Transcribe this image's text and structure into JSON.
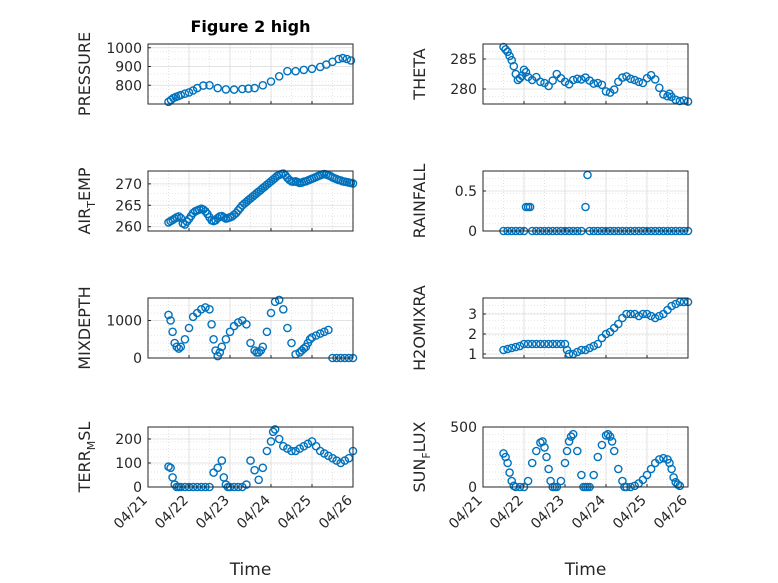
{
  "figure": {
    "title": "Figure 2 high",
    "xlabel": "Time",
    "marker_color": "#0072BD",
    "x_tick_labels": [
      "04/21",
      "04/22",
      "04/23",
      "04/24",
      "04/25",
      "04/26"
    ]
  },
  "chart_data": [
    {
      "type": "scatter",
      "ylabel": "PRESSURE",
      "title": "Figure 2 high",
      "xlim": [
        0,
        5
      ],
      "ylim": [
        700,
        1020
      ],
      "yticks": [
        800,
        900,
        1000
      ],
      "x": [
        0.5,
        0.56,
        0.62,
        0.68,
        0.74,
        0.8,
        0.9,
        1.0,
        1.1,
        1.2,
        1.35,
        1.5,
        1.7,
        1.9,
        2.1,
        2.3,
        2.45,
        2.6,
        2.8,
        3.0,
        3.2,
        3.4,
        3.6,
        3.8,
        4.0,
        4.2,
        4.35,
        4.5,
        4.65,
        4.75,
        4.85,
        4.95
      ],
      "y": [
        712,
        722,
        732,
        738,
        742,
        748,
        755,
        762,
        772,
        785,
        798,
        800,
        785,
        778,
        777,
        780,
        782,
        785,
        800,
        820,
        848,
        875,
        875,
        882,
        888,
        898,
        910,
        925,
        940,
        945,
        940,
        932
      ]
    },
    {
      "type": "scatter",
      "ylabel": "THETA",
      "xlim": [
        0,
        5
      ],
      "ylim": [
        277.5,
        287.5
      ],
      "yticks": [
        280,
        285
      ],
      "x": [
        0.5,
        0.55,
        0.6,
        0.65,
        0.7,
        0.75,
        0.8,
        0.85,
        0.9,
        0.95,
        1.0,
        1.05,
        1.1,
        1.2,
        1.3,
        1.4,
        1.5,
        1.6,
        1.7,
        1.8,
        1.9,
        2.0,
        2.1,
        2.2,
        2.3,
        2.4,
        2.5,
        2.6,
        2.7,
        2.8,
        2.9,
        3.0,
        3.1,
        3.2,
        3.3,
        3.4,
        3.5,
        3.6,
        3.7,
        3.8,
        3.9,
        4.0,
        4.1,
        4.2,
        4.3,
        4.4,
        4.5,
        4.55,
        4.6,
        4.7,
        4.8,
        4.9,
        5.0
      ],
      "y": [
        287.0,
        286.6,
        286.2,
        285.5,
        284.8,
        283.8,
        282.5,
        281.5,
        281.8,
        282.2,
        283.2,
        282.8,
        282.0,
        281.5,
        282.0,
        281.2,
        281.0,
        280.5,
        281.4,
        282.5,
        281.8,
        281.2,
        280.8,
        281.5,
        281.7,
        281.6,
        281.9,
        281.4,
        280.9,
        281.0,
        280.7,
        279.6,
        279.4,
        279.9,
        281.2,
        281.9,
        282.1,
        281.7,
        281.5,
        281.2,
        281.0,
        281.8,
        282.3,
        281.6,
        280.2,
        279.1,
        278.8,
        279.2,
        278.7,
        278.2,
        278.0,
        278.1,
        277.9
      ]
    },
    {
      "type": "scatter",
      "ylabel": "AIR_TEMP",
      "xlim": [
        0,
        5
      ],
      "ylim": [
        259,
        273
      ],
      "yticks": [
        260,
        265,
        270
      ],
      "x": [
        0.5,
        0.55,
        0.6,
        0.65,
        0.7,
        0.75,
        0.8,
        0.85,
        0.9,
        0.95,
        1.0,
        1.05,
        1.1,
        1.15,
        1.2,
        1.25,
        1.3,
        1.35,
        1.4,
        1.45,
        1.5,
        1.55,
        1.6,
        1.65,
        1.7,
        1.75,
        1.8,
        1.85,
        1.9,
        1.95,
        2.0,
        2.05,
        2.1,
        2.15,
        2.2,
        2.25,
        2.3,
        2.35,
        2.4,
        2.45,
        2.5,
        2.55,
        2.6,
        2.65,
        2.7,
        2.75,
        2.8,
        2.85,
        2.9,
        2.95,
        3.0,
        3.05,
        3.1,
        3.15,
        3.2,
        3.25,
        3.3,
        3.35,
        3.4,
        3.45,
        3.5,
        3.55,
        3.6,
        3.65,
        3.7,
        3.75,
        3.8,
        3.85,
        3.9,
        3.95,
        4.0,
        4.05,
        4.1,
        4.15,
        4.2,
        4.25,
        4.3,
        4.35,
        4.4,
        4.45,
        4.5,
        4.55,
        4.6,
        4.65,
        4.7,
        4.75,
        4.8,
        4.85,
        4.9,
        4.95,
        5.0
      ],
      "y": [
        261.0,
        261.3,
        261.6,
        261.9,
        262.2,
        262.4,
        262.0,
        260.8,
        260.5,
        261.2,
        261.8,
        262.5,
        263.2,
        263.6,
        263.8,
        264.0,
        264.2,
        264.0,
        263.6,
        263.0,
        262.2,
        261.5,
        261.3,
        261.5,
        262.0,
        262.4,
        262.5,
        262.2,
        261.9,
        262.0,
        262.2,
        262.4,
        262.8,
        263.2,
        263.8,
        264.4,
        265.0,
        265.4,
        265.8,
        266.2,
        266.6,
        267.0,
        267.4,
        267.8,
        268.2,
        268.6,
        269.0,
        269.4,
        269.8,
        270.2,
        270.6,
        271.0,
        271.4,
        271.8,
        272.1,
        272.3,
        272.4,
        272.0,
        271.4,
        270.9,
        270.6,
        270.5,
        270.6,
        270.4,
        270.2,
        270.3,
        270.5,
        270.6,
        270.8,
        271.0,
        271.2,
        271.4,
        271.6,
        271.8,
        272.0,
        272.2,
        272.3,
        272.2,
        272.0,
        271.8,
        271.5,
        271.3,
        271.1,
        270.9,
        270.8,
        270.6,
        270.5,
        270.4,
        270.3,
        270.2,
        270.1
      ]
    },
    {
      "type": "scatter",
      "ylabel": "RAINFALL",
      "xlim": [
        0,
        5
      ],
      "ylim": [
        0,
        0.75
      ],
      "yticks": [
        0,
        0.5
      ],
      "x": [
        0.5,
        0.6,
        0.7,
        0.8,
        0.9,
        1.0,
        1.05,
        1.1,
        1.15,
        1.2,
        1.3,
        1.4,
        1.5,
        1.6,
        1.7,
        1.8,
        1.9,
        2.0,
        2.1,
        2.2,
        2.3,
        2.4,
        2.5,
        2.55,
        2.6,
        2.7,
        2.8,
        2.9,
        3.0,
        3.1,
        3.2,
        3.3,
        3.4,
        3.5,
        3.6,
        3.7,
        3.8,
        3.9,
        4.0,
        4.1,
        4.2,
        4.3,
        4.4,
        4.5,
        4.6,
        4.7,
        4.8,
        4.9,
        5.0
      ],
      "y": [
        0,
        0,
        0,
        0,
        0,
        0,
        0.3,
        0.3,
        0.3,
        0,
        0,
        0,
        0,
        0,
        0,
        0,
        0,
        0,
        0,
        0,
        0,
        0,
        0.3,
        0.7,
        0,
        0,
        0,
        0,
        0,
        0,
        0,
        0,
        0,
        0,
        0,
        0,
        0,
        0,
        0,
        0,
        0,
        0,
        0,
        0,
        0,
        0,
        0,
        0,
        0
      ]
    },
    {
      "type": "scatter",
      "ylabel": "MIXDEPTH",
      "xlim": [
        0,
        5
      ],
      "ylim": [
        0,
        1600
      ],
      "yticks": [
        0,
        1000
      ],
      "x": [
        0.5,
        0.55,
        0.6,
        0.65,
        0.7,
        0.75,
        0.8,
        0.9,
        1.0,
        1.1,
        1.2,
        1.3,
        1.4,
        1.5,
        1.55,
        1.6,
        1.65,
        1.7,
        1.75,
        1.8,
        1.9,
        2.0,
        2.1,
        2.2,
        2.3,
        2.4,
        2.5,
        2.6,
        2.65,
        2.7,
        2.75,
        2.8,
        2.9,
        3.0,
        3.1,
        3.2,
        3.3,
        3.4,
        3.5,
        3.6,
        3.7,
        3.75,
        3.8,
        3.85,
        3.9,
        3.95,
        4.0,
        4.1,
        4.2,
        4.3,
        4.4,
        4.5,
        4.6,
        4.7,
        4.8,
        4.9,
        5.0
      ],
      "y": [
        1150,
        1000,
        700,
        400,
        300,
        250,
        300,
        500,
        800,
        1100,
        1200,
        1300,
        1350,
        1300,
        900,
        500,
        200,
        50,
        150,
        300,
        500,
        700,
        850,
        950,
        1000,
        900,
        400,
        200,
        150,
        150,
        200,
        300,
        700,
        1200,
        1500,
        1550,
        1300,
        800,
        400,
        100,
        150,
        200,
        250,
        300,
        400,
        500,
        550,
        600,
        650,
        700,
        750,
        0,
        0,
        0,
        0,
        0,
        0
      ]
    },
    {
      "type": "scatter",
      "ylabel": "H2OMIXRA",
      "xlim": [
        0,
        5
      ],
      "ylim": [
        0.8,
        3.8
      ],
      "yticks": [
        1,
        2,
        3
      ],
      "x": [
        0.5,
        0.6,
        0.7,
        0.8,
        0.9,
        1.0,
        1.1,
        1.2,
        1.3,
        1.4,
        1.5,
        1.6,
        1.7,
        1.8,
        1.9,
        2.0,
        2.05,
        2.1,
        2.2,
        2.3,
        2.4,
        2.5,
        2.6,
        2.7,
        2.8,
        2.9,
        3.0,
        3.1,
        3.2,
        3.3,
        3.4,
        3.5,
        3.6,
        3.7,
        3.8,
        3.9,
        4.0,
        4.1,
        4.2,
        4.3,
        4.4,
        4.5,
        4.6,
        4.7,
        4.8,
        4.9,
        5.0
      ],
      "y": [
        1.2,
        1.25,
        1.3,
        1.35,
        1.4,
        1.5,
        1.5,
        1.5,
        1.5,
        1.5,
        1.5,
        1.5,
        1.5,
        1.5,
        1.5,
        1.5,
        1.2,
        1.0,
        1.0,
        1.1,
        1.2,
        1.2,
        1.3,
        1.4,
        1.5,
        1.8,
        2.0,
        2.1,
        2.3,
        2.5,
        2.8,
        3.0,
        3.0,
        3.0,
        2.9,
        3.0,
        3.0,
        2.9,
        2.8,
        2.9,
        3.0,
        3.2,
        3.4,
        3.5,
        3.6,
        3.6,
        3.6
      ]
    },
    {
      "type": "scatter",
      "ylabel": "TERR_MSL",
      "xlim": [
        0,
        5
      ],
      "ylim": [
        0,
        250
      ],
      "yticks": [
        0,
        100,
        200
      ],
      "x": [
        0.5,
        0.55,
        0.6,
        0.65,
        0.7,
        0.75,
        0.8,
        0.9,
        1.0,
        1.1,
        1.2,
        1.3,
        1.4,
        1.5,
        1.6,
        1.7,
        1.8,
        1.85,
        1.9,
        1.95,
        2.0,
        2.1,
        2.2,
        2.3,
        2.4,
        2.5,
        2.6,
        2.7,
        2.8,
        2.9,
        3.0,
        3.05,
        3.1,
        3.2,
        3.3,
        3.4,
        3.5,
        3.6,
        3.7,
        3.8,
        3.9,
        4.0,
        4.1,
        4.2,
        4.3,
        4.4,
        4.5,
        4.6,
        4.7,
        4.8,
        4.9,
        5.0
      ],
      "y": [
        85,
        80,
        40,
        10,
        0,
        0,
        0,
        0,
        0,
        0,
        0,
        0,
        0,
        0,
        60,
        80,
        110,
        40,
        10,
        0,
        0,
        0,
        0,
        0,
        10,
        110,
        70,
        30,
        80,
        150,
        190,
        230,
        240,
        200,
        170,
        160,
        150,
        150,
        160,
        170,
        180,
        190,
        170,
        150,
        140,
        130,
        120,
        110,
        100,
        110,
        120,
        150
      ]
    },
    {
      "type": "scatter",
      "ylabel": "SUN_FLUX",
      "xlim": [
        0,
        5
      ],
      "ylim": [
        0,
        500
      ],
      "yticks": [
        0,
        500
      ],
      "x": [
        0.5,
        0.55,
        0.6,
        0.65,
        0.7,
        0.75,
        0.8,
        0.9,
        1.0,
        1.1,
        1.2,
        1.3,
        1.4,
        1.45,
        1.5,
        1.55,
        1.6,
        1.65,
        1.7,
        1.75,
        1.8,
        1.9,
        2.0,
        2.05,
        2.1,
        2.15,
        2.2,
        2.3,
        2.4,
        2.45,
        2.5,
        2.55,
        2.6,
        2.7,
        2.8,
        2.9,
        3.0,
        3.05,
        3.1,
        3.15,
        3.2,
        3.3,
        3.4,
        3.45,
        3.5,
        3.6,
        3.7,
        3.8,
        3.9,
        4.0,
        4.1,
        4.2,
        4.3,
        4.4,
        4.5,
        4.55,
        4.6,
        4.65,
        4.7,
        4.75,
        4.8
      ],
      "y": [
        280,
        250,
        200,
        120,
        50,
        10,
        0,
        0,
        0,
        50,
        200,
        300,
        370,
        380,
        330,
        250,
        150,
        50,
        0,
        0,
        0,
        50,
        200,
        300,
        380,
        420,
        440,
        300,
        100,
        0,
        0,
        0,
        0,
        100,
        250,
        350,
        430,
        440,
        420,
        380,
        300,
        150,
        50,
        0,
        0,
        0,
        10,
        30,
        60,
        100,
        150,
        200,
        230,
        240,
        230,
        200,
        150,
        80,
        40,
        20,
        10
      ]
    }
  ]
}
